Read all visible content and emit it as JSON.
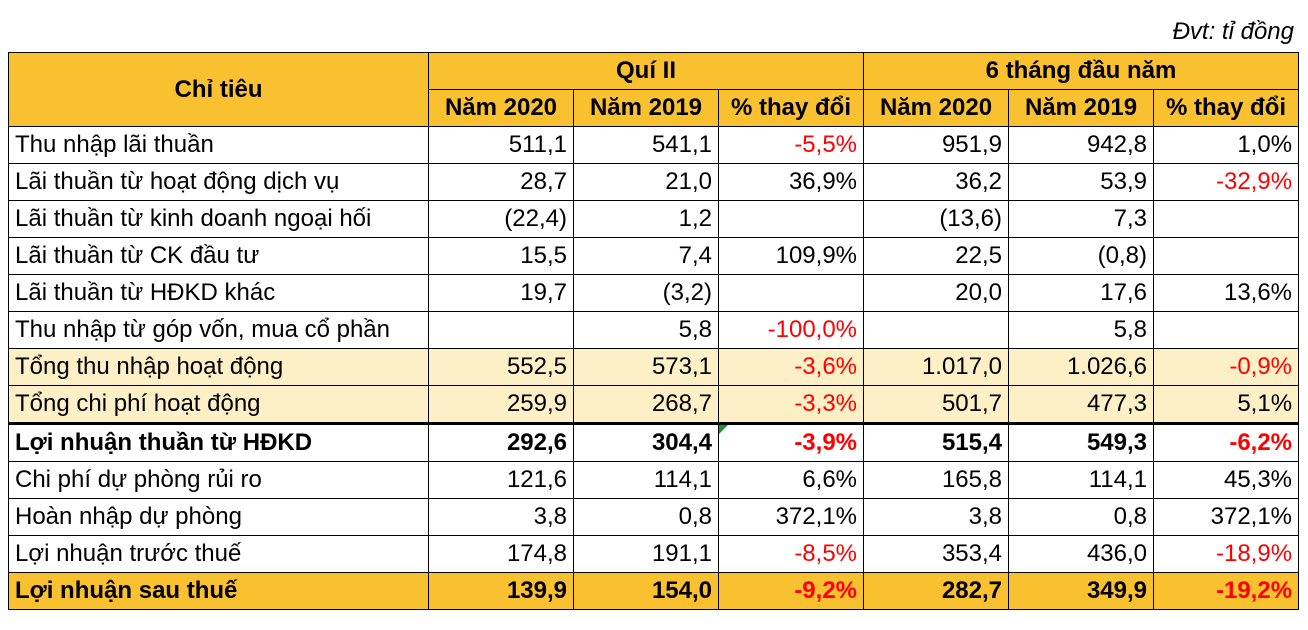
{
  "unit": "Đvt: tỉ đồng",
  "header": {
    "indicator": "Chỉ tiêu",
    "group_q2": "Quí II",
    "group_6m": "6 tháng đầu năm",
    "y2020": "Năm 2020",
    "y2019": "Năm 2019",
    "change": "% thay đổi"
  },
  "colors": {
    "header_bg": "#f9c030",
    "highlight_bg": "#fdefc6",
    "negative_text": "#ff0000"
  },
  "rows": [
    {
      "label": "Thu nhập lãi thuần",
      "q2_2020": "511,1",
      "q2_2019": "541,1",
      "q2_chg": "-5,5%",
      "h1_2020": "951,9",
      "h1_2019": "942,8",
      "h1_chg": "1,0%"
    },
    {
      "label": "Lãi thuần từ hoạt động dịch vụ",
      "q2_2020": "28,7",
      "q2_2019": "21,0",
      "q2_chg": "36,9%",
      "h1_2020": "36,2",
      "h1_2019": "53,9",
      "h1_chg": "-32,9%"
    },
    {
      "label": "Lãi thuần từ kinh doanh ngoại hối",
      "q2_2020": "(22,4)",
      "q2_2019": "1,2",
      "q2_chg": "",
      "h1_2020": "(13,6)",
      "h1_2019": "7,3",
      "h1_chg": ""
    },
    {
      "label": "Lãi thuần từ CK đầu tư",
      "q2_2020": "15,5",
      "q2_2019": "7,4",
      "q2_chg": "109,9%",
      "h1_2020": "22,5",
      "h1_2019": "(0,8)",
      "h1_chg": ""
    },
    {
      "label": "Lãi thuần từ HĐKD khác",
      "q2_2020": "19,7",
      "q2_2019": "(3,2)",
      "q2_chg": "",
      "h1_2020": "20,0",
      "h1_2019": "17,6",
      "h1_chg": "13,6%"
    },
    {
      "label": "Thu nhập từ góp vốn, mua cổ phần",
      "q2_2020": "",
      "q2_2019": "5,8",
      "q2_chg": "-100,0%",
      "h1_2020": "",
      "h1_2019": "5,8",
      "h1_chg": ""
    },
    {
      "label": "Tổng thu nhập hoạt động",
      "q2_2020": "552,5",
      "q2_2019": "573,1",
      "q2_chg": "-3,6%",
      "h1_2020": "1.017,0",
      "h1_2019": "1.026,6",
      "h1_chg": "-0,9%"
    },
    {
      "label": "Tổng chi phí hoạt động",
      "q2_2020": "259,9",
      "q2_2019": "268,7",
      "q2_chg": "-3,3%",
      "h1_2020": "501,7",
      "h1_2019": "477,3",
      "h1_chg": "5,1%"
    },
    {
      "label": "Lợi nhuận thuần từ HĐKD",
      "q2_2020": "292,6",
      "q2_2019": "304,4",
      "q2_chg": "-3,9%",
      "h1_2020": "515,4",
      "h1_2019": "549,3",
      "h1_chg": "-6,2%"
    },
    {
      "label": "Chi phí dự phòng rủi ro",
      "q2_2020": "121,6",
      "q2_2019": "114,1",
      "q2_chg": "6,6%",
      "h1_2020": "165,8",
      "h1_2019": "114,1",
      "h1_chg": "45,3%"
    },
    {
      "label": "Hoàn nhập dự phòng",
      "q2_2020": "3,8",
      "q2_2019": "0,8",
      "q2_chg": "372,1%",
      "h1_2020": "3,8",
      "h1_2019": "0,8",
      "h1_chg": "372,1%"
    },
    {
      "label": "Lợi nhuận trước thuế",
      "q2_2020": "174,8",
      "q2_2019": "191,1",
      "q2_chg": "-8,5%",
      "h1_2020": "353,4",
      "h1_2019": "436,0",
      "h1_chg": "-18,9%"
    },
    {
      "label": "Lợi nhuận sau thuế",
      "q2_2020": "139,9",
      "q2_2019": "154,0",
      "q2_chg": "-9,2%",
      "h1_2020": "282,7",
      "h1_2019": "349,9",
      "h1_chg": "-19,2%"
    }
  ]
}
